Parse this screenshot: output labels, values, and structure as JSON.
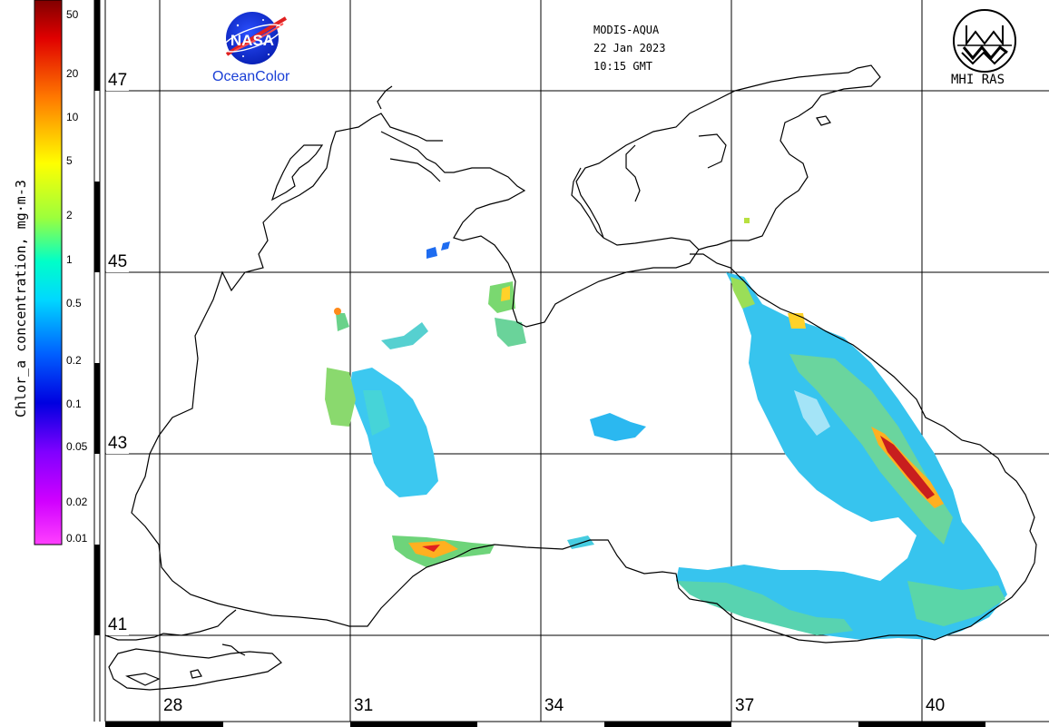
{
  "sensor": "MODIS-AQUA",
  "date": "22 Jan 2023",
  "time": "10:15 GMT",
  "logos": {
    "nasa_text": "NASA",
    "oceancolor_text": "OceanColor",
    "mhi_text": "MHI RAS"
  },
  "colorbar": {
    "title": "Chlor_a concentration, mg·m-3",
    "ticks": [
      {
        "label": "50",
        "value": 50
      },
      {
        "label": "20",
        "value": 20
      },
      {
        "label": "10",
        "value": 10
      },
      {
        "label": "5",
        "value": 5
      },
      {
        "label": "2",
        "value": 2
      },
      {
        "label": "1",
        "value": 1
      },
      {
        "label": "0.5",
        "value": 0.5
      },
      {
        "label": "0.2",
        "value": 0.2
      },
      {
        "label": "0.1",
        "value": 0.1
      },
      {
        "label": "0.05",
        "value": 0.05
      },
      {
        "label": "0.02",
        "value": 0.02
      },
      {
        "label": "0.01",
        "value": 0.01
      }
    ]
  },
  "latitude_labels": [
    "47",
    "45",
    "43",
    "41"
  ],
  "longitude_labels": [
    "28",
    "31",
    "34",
    "37",
    "40"
  ],
  "colors": {
    "coast": "#000000",
    "grid": "#000000",
    "nasa_blue": "#1a3fd6",
    "nasa_red": "#e02020"
  }
}
